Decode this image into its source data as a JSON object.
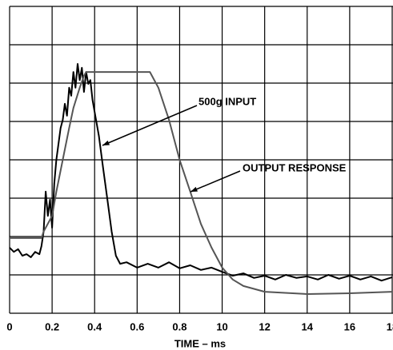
{
  "chart_data": {
    "type": "line",
    "xlabel": "TIME – ms",
    "xlim": [
      0,
      1.8
    ],
    "ylim": [
      0,
      8
    ],
    "xticks": [
      0,
      0.2,
      0.4,
      0.6,
      0.8,
      {
        "value": 1.0,
        "label": "10"
      },
      {
        "value": 1.2,
        "label": "12"
      },
      {
        "value": 1.4,
        "label": "14"
      },
      {
        "value": 1.6,
        "label": "16"
      },
      {
        "value": 1.8,
        "label": "18"
      }
    ],
    "yticks": [
      0,
      1,
      2,
      3,
      4,
      5,
      6,
      7,
      8
    ],
    "grid": true,
    "annotations": [
      "500g INPUT",
      "OUTPUT RESPONSE"
    ],
    "series": [
      {
        "color": "#000000",
        "x": [
          0,
          0.02,
          0.04,
          0.06,
          0.08,
          0.1,
          0.12,
          0.14,
          0.15,
          0.16,
          0.17,
          0.18,
          0.19,
          0.2,
          0.21,
          0.22,
          0.23,
          0.24,
          0.25,
          0.26,
          0.27,
          0.28,
          0.29,
          0.3,
          0.31,
          0.32,
          0.33,
          0.34,
          0.35,
          0.36,
          0.37,
          0.38,
          0.39,
          0.4,
          0.42,
          0.44,
          0.46,
          0.48,
          0.5,
          0.52,
          0.55,
          0.6,
          0.65,
          0.7,
          0.75,
          0.8,
          0.85,
          0.9,
          0.95,
          1.0,
          1.05,
          1.1,
          1.15,
          1.2,
          1.25,
          1.3,
          1.35,
          1.4,
          1.45,
          1.5,
          1.55,
          1.6,
          1.65,
          1.7,
          1.75,
          1.8
        ],
        "values": [
          1.71,
          1.6,
          1.67,
          1.5,
          1.54,
          1.46,
          1.6,
          1.54,
          1.75,
          2.13,
          3.17,
          2.54,
          2.96,
          2.23,
          3.38,
          4.0,
          4.42,
          4.83,
          5.04,
          5.46,
          5.15,
          5.88,
          5.67,
          6.29,
          5.88,
          6.5,
          6.08,
          6.4,
          5.77,
          6.29,
          5.98,
          6.08,
          5.56,
          5.25,
          4.63,
          3.79,
          2.96,
          2.13,
          1.5,
          1.29,
          1.33,
          1.19,
          1.29,
          1.19,
          1.33,
          1.17,
          1.25,
          1.13,
          1.19,
          1.08,
          0.98,
          1.04,
          0.92,
          0.98,
          0.88,
          1.0,
          0.92,
          0.96,
          0.88,
          1.0,
          0.9,
          0.98,
          0.88,
          0.96,
          0.85,
          0.94
        ]
      },
      {
        "color": "#555555",
        "x": [
          0,
          0.15,
          0.16,
          0.2,
          0.22,
          0.25,
          0.28,
          0.3,
          0.33,
          0.35,
          0.36,
          0.66,
          0.7,
          0.75,
          0.8,
          0.85,
          0.9,
          0.95,
          1.0,
          1.05,
          1.1,
          1.2,
          1.4,
          1.6,
          1.8
        ],
        "values": [
          1.96,
          1.96,
          2.13,
          2.54,
          3.17,
          4.0,
          4.83,
          5.35,
          5.88,
          6.19,
          6.29,
          6.29,
          5.88,
          5.04,
          4.0,
          3.17,
          2.33,
          1.71,
          1.19,
          0.88,
          0.71,
          0.56,
          0.5,
          0.52,
          0.56
        ]
      }
    ]
  }
}
